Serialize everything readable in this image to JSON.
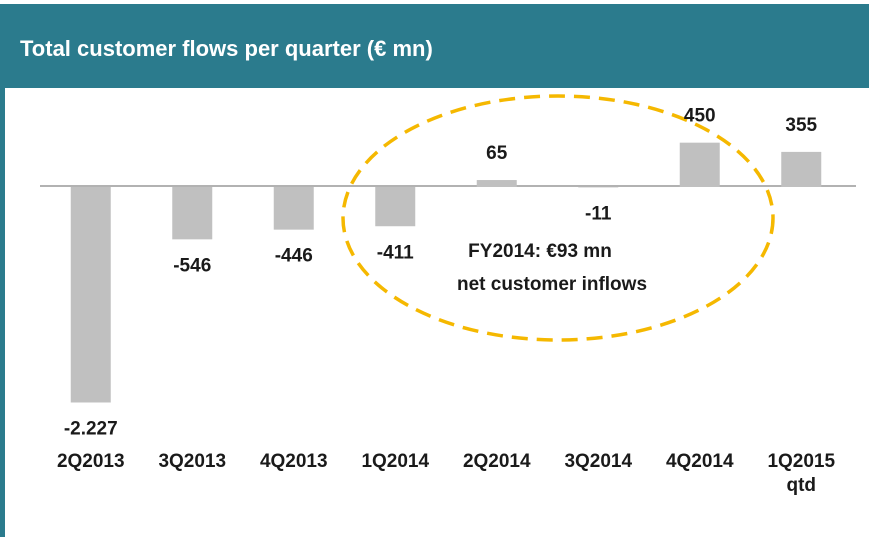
{
  "chart_data": {
    "type": "bar",
    "title": "Total customer flows per quarter (€ mn)",
    "categories": [
      "2Q2013",
      "3Q2013",
      "4Q2013",
      "1Q2014",
      "2Q2014",
      "3Q2014",
      "4Q2014",
      "1Q2015 qtd"
    ],
    "values": [
      -2227,
      -546,
      -446,
      -411,
      65,
      -11,
      450,
      355
    ],
    "value_labels": [
      "-2.227",
      "-546",
      "-446",
      "-411",
      "65",
      "-11",
      "450",
      "355"
    ],
    "color": "#c0c0c0",
    "ylim": [
      -2500,
      900
    ],
    "annotation": [
      "FY2014: €93 mn",
      "net customer inflows"
    ]
  }
}
